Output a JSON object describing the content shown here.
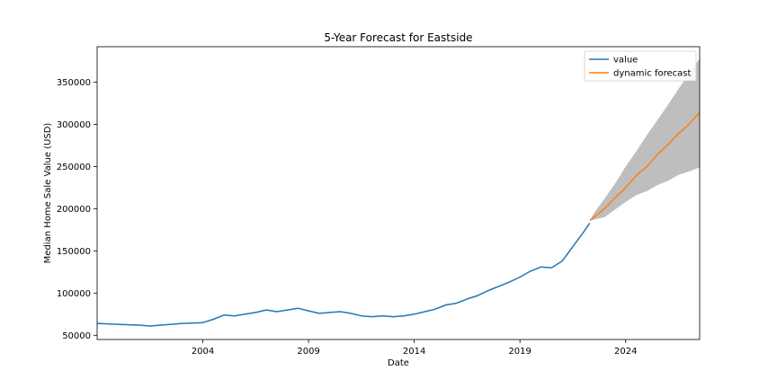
{
  "chart_data": {
    "type": "line",
    "title": "5-Year Forecast for Eastside",
    "xlabel": "Date",
    "ylabel": "Median Home Sale Value (USD)",
    "xlim": [
      1999.0,
      2027.5
    ],
    "ylim": [
      45000,
      392000
    ],
    "x_ticks": [
      2004,
      2009,
      2014,
      2019,
      2024
    ],
    "y_ticks": [
      50000,
      100000,
      150000,
      200000,
      250000,
      300000,
      350000
    ],
    "legend_position": "top-right",
    "colors": {
      "value": "#1f77b4",
      "forecast": "#ff7f0e",
      "band": "#bebebe"
    },
    "series": [
      {
        "name": "value",
        "x": [
          1999.0,
          1999.5,
          2000.0,
          2000.5,
          2001.0,
          2001.5,
          2002.0,
          2002.5,
          2003.0,
          2003.5,
          2004.0,
          2004.5,
          2005.0,
          2005.5,
          2006.0,
          2006.5,
          2007.0,
          2007.5,
          2008.0,
          2008.5,
          2009.0,
          2009.5,
          2010.0,
          2010.5,
          2011.0,
          2011.5,
          2012.0,
          2012.5,
          2013.0,
          2013.5,
          2014.0,
          2014.5,
          2015.0,
          2015.5,
          2016.0,
          2016.5,
          2017.0,
          2017.5,
          2018.0,
          2018.5,
          2019.0,
          2019.5,
          2020.0,
          2020.5,
          2021.0,
          2021.5,
          2022.0,
          2022.3
        ],
        "values": [
          64000,
          63500,
          63000,
          62500,
          62000,
          61000,
          62000,
          63000,
          64000,
          64500,
          65000,
          69000,
          74000,
          73000,
          75000,
          77000,
          80000,
          78000,
          80000,
          82000,
          79000,
          76000,
          77000,
          78000,
          76000,
          73000,
          72000,
          73000,
          72000,
          73000,
          75000,
          78000,
          81000,
          86000,
          88000,
          93000,
          97000,
          103000,
          108000,
          113000,
          119000,
          126000,
          131000,
          130000,
          138000,
          155000,
          172000,
          183000
        ]
      },
      {
        "name": "dynamic forecast",
        "x": [
          2022.3,
          2022.5,
          2023.0,
          2023.5,
          2024.0,
          2024.5,
          2025.0,
          2025.5,
          2026.0,
          2026.5,
          2027.0,
          2027.5
        ],
        "values": [
          186000,
          190000,
          200000,
          213000,
          225000,
          239000,
          250000,
          264000,
          276000,
          289000,
          300000,
          314000
        ],
        "lower": [
          186000,
          187000,
          190000,
          199000,
          208000,
          216000,
          221000,
          228000,
          233000,
          240000,
          244000,
          249000
        ],
        "upper": [
          186000,
          195000,
          212000,
          230000,
          250000,
          268000,
          287000,
          305000,
          323000,
          342000,
          360000,
          378000
        ]
      }
    ]
  }
}
